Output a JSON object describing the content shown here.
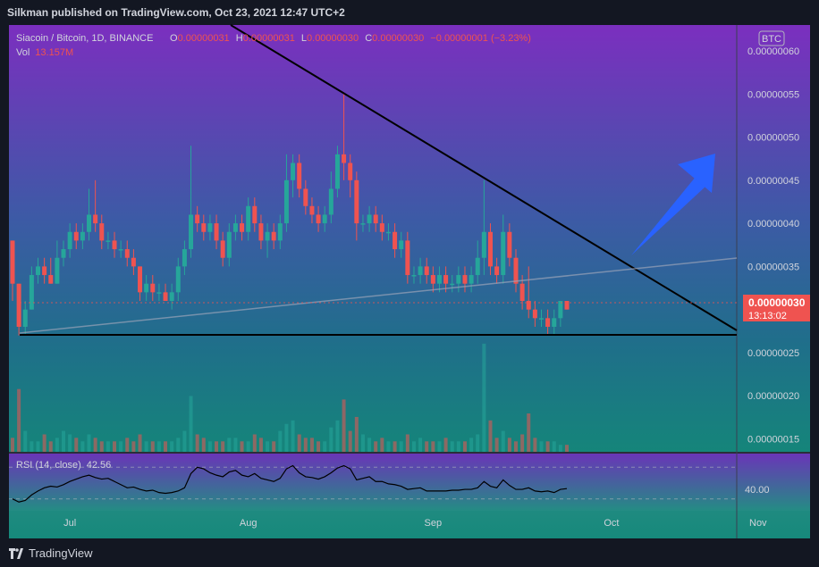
{
  "header": {
    "publisher_line": "Silkman published on TradingView.com, Oct 23, 2021 12:47 UTC+2"
  },
  "footer": {
    "brand": "TradingView",
    "logo_icon": "tradingview-logo-icon"
  },
  "legend": {
    "symbol": "Siacoin / Bitcoin, 1D, BINANCE",
    "o_label": "O",
    "o_value": "0.00000031",
    "h_label": "H",
    "h_value": "0.00000031",
    "l_label": "L",
    "l_value": "0.00000030",
    "c_label": "C",
    "c_value": "0.00000030",
    "change": "−0.00000001 (−3.23%)",
    "vol_label": "Vol",
    "vol_value": "13.157M"
  },
  "currency_badge": "BTC",
  "price_tag": {
    "price": "0.00000030",
    "countdown": "13:13:02"
  },
  "rsi": {
    "label": "RSI (14, close)",
    "value": "42.56",
    "scale_label": "40.00"
  },
  "colors": {
    "up": "#26a69a",
    "down": "#ef5350",
    "arrow": "#2962ff",
    "trendline": "#000000",
    "bg_top": "#7b2fbf",
    "bg_bottom": "#128a78"
  },
  "chart_data": {
    "type": "candlestick",
    "xlabel": "",
    "ylabel": "",
    "y_ticks": [
      "0.00000060",
      "0.00000055",
      "0.00000050",
      "0.00000045",
      "0.00000040",
      "0.00000035",
      "0.00000030",
      "0.00000025",
      "0.00000020",
      "0.00000015"
    ],
    "x_ticks": [
      "Jul",
      "Aug",
      "Sep",
      "Oct",
      "Nov"
    ],
    "ylim": [
      1.35e-07,
      6.3e-07
    ],
    "candles": [
      [
        3.8e-07,
        3.8e-07,
        3.1e-07,
        3.3e-07
      ],
      [
        3.3e-07,
        3.3e-07,
        2.7e-07,
        2.8e-07
      ],
      [
        2.8e-07,
        3.1e-07,
        2.7e-07,
        3e-07
      ],
      [
        3e-07,
        3.5e-07,
        3e-07,
        3.4e-07
      ],
      [
        3.4e-07,
        3.6e-07,
        3.3e-07,
        3.5e-07
      ],
      [
        3.5e-07,
        3.6e-07,
        3.3e-07,
        3.4e-07
      ],
      [
        3.4e-07,
        3.6e-07,
        3.3e-07,
        3.3e-07
      ],
      [
        3.3e-07,
        3.8e-07,
        3.3e-07,
        3.6e-07
      ],
      [
        3.6e-07,
        3.8e-07,
        3.5e-07,
        3.7e-07
      ],
      [
        3.7e-07,
        4e-07,
        3.6e-07,
        3.9e-07
      ],
      [
        3.9e-07,
        4e-07,
        3.7e-07,
        3.8e-07
      ],
      [
        3.8e-07,
        4e-07,
        3.7e-07,
        3.9e-07
      ],
      [
        3.9e-07,
        4.4e-07,
        3.8e-07,
        4.1e-07
      ],
      [
        4.1e-07,
        4.5e-07,
        3.9e-07,
        4e-07
      ],
      [
        4e-07,
        4.1e-07,
        3.7e-07,
        3.8e-07
      ],
      [
        3.8e-07,
        3.9e-07,
        3.7e-07,
        3.8e-07
      ],
      [
        3.8e-07,
        3.9e-07,
        3.6e-07,
        3.7e-07
      ],
      [
        3.7e-07,
        3.8e-07,
        3.6e-07,
        3.7e-07
      ],
      [
        3.7e-07,
        3.8e-07,
        3.5e-07,
        3.6e-07
      ],
      [
        3.6e-07,
        3.7e-07,
        3.4e-07,
        3.5e-07
      ],
      [
        3.5e-07,
        3.5e-07,
        3.1e-07,
        3.2e-07
      ],
      [
        3.2e-07,
        3.4e-07,
        3.1e-07,
        3.3e-07
      ],
      [
        3.3e-07,
        3.4e-07,
        3.1e-07,
        3.2e-07
      ],
      [
        3.2e-07,
        3.3e-07,
        3.1e-07,
        3.2e-07
      ],
      [
        3.2e-07,
        3.3e-07,
        3.1e-07,
        3.1e-07
      ],
      [
        3.1e-07,
        3.3e-07,
        3e-07,
        3.2e-07
      ],
      [
        3.2e-07,
        3.6e-07,
        3.1e-07,
        3.5e-07
      ],
      [
        3.5e-07,
        3.8e-07,
        3.4e-07,
        3.7e-07
      ],
      [
        3.7e-07,
        4.9e-07,
        3.6e-07,
        4.1e-07
      ],
      [
        4.1e-07,
        4.2e-07,
        3.9e-07,
        4e-07
      ],
      [
        4e-07,
        4.1e-07,
        3.8e-07,
        3.9e-07
      ],
      [
        3.9e-07,
        4.1e-07,
        3.8e-07,
        4e-07
      ],
      [
        4e-07,
        4.1e-07,
        3.7e-07,
        3.8e-07
      ],
      [
        3.8e-07,
        3.9e-07,
        3.5e-07,
        3.6e-07
      ],
      [
        3.6e-07,
        4e-07,
        3.5e-07,
        3.9e-07
      ],
      [
        3.9e-07,
        4.1e-07,
        3.8e-07,
        4e-07
      ],
      [
        4e-07,
        4.1e-07,
        3.8e-07,
        3.9e-07
      ],
      [
        3.9e-07,
        4.3e-07,
        3.8e-07,
        4.2e-07
      ],
      [
        4.2e-07,
        4.3e-07,
        3.9e-07,
        4e-07
      ],
      [
        4e-07,
        4.1e-07,
        3.7e-07,
        3.8e-07
      ],
      [
        3.8e-07,
        4e-07,
        3.6e-07,
        3.9e-07
      ],
      [
        3.9e-07,
        4e-07,
        3.7e-07,
        3.8e-07
      ],
      [
        3.8e-07,
        4.1e-07,
        3.7e-07,
        4e-07
      ],
      [
        4e-07,
        4.8e-07,
        3.9e-07,
        4.5e-07
      ],
      [
        4.5e-07,
        4.8e-07,
        4.3e-07,
        4.7e-07
      ],
      [
        4.7e-07,
        4.8e-07,
        4.3e-07,
        4.4e-07
      ],
      [
        4.4e-07,
        4.5e-07,
        4.1e-07,
        4.2e-07
      ],
      [
        4.2e-07,
        4.3e-07,
        4e-07,
        4.1e-07
      ],
      [
        4.1e-07,
        4.2e-07,
        3.9e-07,
        4e-07
      ],
      [
        4e-07,
        4.2e-07,
        3.9e-07,
        4.1e-07
      ],
      [
        4.1e-07,
        4.6e-07,
        4e-07,
        4.4e-07
      ],
      [
        4.4e-07,
        4.9e-07,
        4.3e-07,
        4.8e-07
      ],
      [
        4.8e-07,
        5.5e-07,
        4.5e-07,
        4.7e-07
      ],
      [
        4.7e-07,
        4.8e-07,
        4.3e-07,
        4.5e-07
      ],
      [
        4.5e-07,
        4.6e-07,
        3.8e-07,
        4e-07
      ],
      [
        4e-07,
        4.1e-07,
        3.9e-07,
        4e-07
      ],
      [
        4e-07,
        4.2e-07,
        3.9e-07,
        4.1e-07
      ],
      [
        4.1e-07,
        4.2e-07,
        3.9e-07,
        4e-07
      ],
      [
        4e-07,
        4.1e-07,
        3.8e-07,
        3.9e-07
      ],
      [
        3.9e-07,
        4e-07,
        3.8e-07,
        3.9e-07
      ],
      [
        3.9e-07,
        4e-07,
        3.6e-07,
        3.7e-07
      ],
      [
        3.7e-07,
        3.9e-07,
        3.6e-07,
        3.8e-07
      ],
      [
        3.8e-07,
        3.9e-07,
        3.3e-07,
        3.4e-07
      ],
      [
        3.4e-07,
        3.5e-07,
        3.3e-07,
        3.4e-07
      ],
      [
        3.4e-07,
        3.6e-07,
        3.3e-07,
        3.5e-07
      ],
      [
        3.5e-07,
        3.6e-07,
        3.3e-07,
        3.4e-07
      ],
      [
        3.4e-07,
        3.5e-07,
        3.2e-07,
        3.3e-07
      ],
      [
        3.3e-07,
        3.5e-07,
        3.2e-07,
        3.4e-07
      ],
      [
        3.4e-07,
        3.5e-07,
        3.2e-07,
        3.3e-07
      ],
      [
        3.3e-07,
        3.4e-07,
        3.2e-07,
        3.3e-07
      ],
      [
        3.3e-07,
        3.5e-07,
        3.2e-07,
        3.4e-07
      ],
      [
        3.4e-07,
        3.5e-07,
        3.2e-07,
        3.3e-07
      ],
      [
        3.3e-07,
        3.5e-07,
        3.2e-07,
        3.4e-07
      ],
      [
        3.4e-07,
        3.8e-07,
        3.3e-07,
        3.6e-07
      ],
      [
        3.6e-07,
        4.5e-07,
        3.4e-07,
        3.9e-07
      ],
      [
        3.9e-07,
        4e-07,
        3.4e-07,
        3.5e-07
      ],
      [
        3.5e-07,
        3.6e-07,
        3.3e-07,
        3.4e-07
      ],
      [
        3.4e-07,
        4.1e-07,
        3.3e-07,
        3.9e-07
      ],
      [
        3.9e-07,
        4e-07,
        3.5e-07,
        3.6e-07
      ],
      [
        3.6e-07,
        3.7e-07,
        3.2e-07,
        3.3e-07
      ],
      [
        3.3e-07,
        3.4e-07,
        3e-07,
        3.1e-07
      ],
      [
        3.1e-07,
        3.5e-07,
        2.9e-07,
        3e-07
      ],
      [
        3e-07,
        3.1e-07,
        2.8e-07,
        2.9e-07
      ],
      [
        2.9e-07,
        3e-07,
        2.8e-07,
        2.9e-07
      ],
      [
        2.9e-07,
        3e-07,
        2.7e-07,
        2.8e-07
      ],
      [
        2.8e-07,
        3e-07,
        2.7e-07,
        2.9e-07
      ],
      [
        2.9e-07,
        3.1e-07,
        2.8e-07,
        3.1e-07
      ],
      [
        3.1e-07,
        3.1e-07,
        3e-07,
        3e-07
      ]
    ],
    "volume_max_units": 32,
    "volume": [
      4,
      18,
      6,
      3,
      3,
      5,
      3,
      4,
      6,
      5,
      4,
      3,
      5,
      4,
      3,
      3,
      3,
      3,
      4,
      3,
      5,
      3,
      3,
      3,
      3,
      3,
      4,
      6,
      16,
      5,
      4,
      3,
      3,
      3,
      4,
      4,
      3,
      3,
      5,
      4,
      3,
      3,
      6,
      8,
      9,
      5,
      4,
      4,
      3,
      3,
      7,
      9,
      15,
      6,
      10,
      5,
      4,
      3,
      4,
      3,
      3,
      3,
      5,
      3,
      4,
      3,
      3,
      3,
      4,
      3,
      3,
      3,
      4,
      5,
      31,
      9,
      4,
      6,
      4,
      3,
      5,
      11,
      4,
      3,
      3,
      3,
      2,
      2
    ],
    "rsi_ylim": [
      15,
      85
    ],
    "rsi_levels": [
      30,
      70
    ],
    "rsi": [
      30,
      26,
      28,
      35,
      40,
      44,
      46,
      45,
      48,
      52,
      55,
      58,
      60,
      57,
      55,
      56,
      52,
      48,
      44,
      45,
      42,
      40,
      41,
      38,
      37,
      38,
      40,
      44,
      62,
      70,
      68,
      63,
      60,
      58,
      64,
      66,
      60,
      58,
      62,
      56,
      54,
      52,
      56,
      68,
      72,
      63,
      58,
      57,
      55,
      58,
      63,
      69,
      72,
      68,
      54,
      56,
      58,
      52,
      52,
      49,
      48,
      46,
      42,
      43,
      44,
      40,
      40,
      40,
      40,
      41,
      41,
      42,
      42,
      44,
      52,
      46,
      44,
      54,
      47,
      42,
      42,
      44,
      40,
      39,
      40,
      38,
      42,
      43
    ]
  }
}
